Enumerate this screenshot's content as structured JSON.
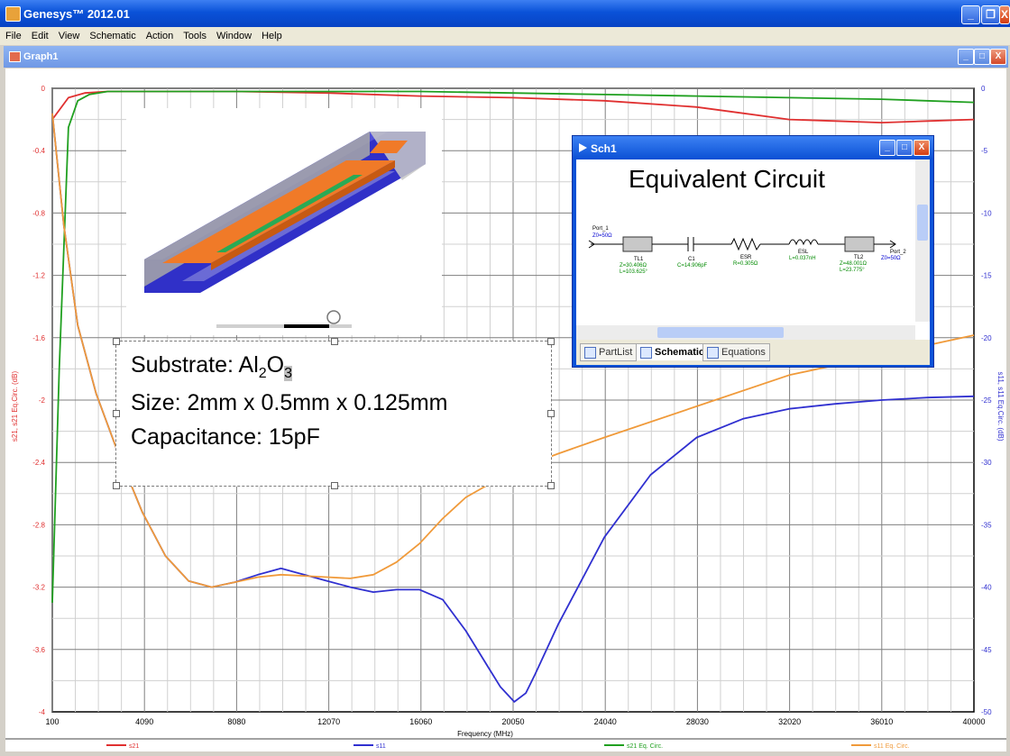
{
  "window": {
    "title": "Genesys™ 2012.01",
    "minimize_glyph": "_",
    "maximize_glyph": "❐",
    "close_glyph": "X"
  },
  "menu": [
    "File",
    "Edit",
    "View",
    "Schematic",
    "Action",
    "Tools",
    "Window",
    "Help"
  ],
  "graph_window": {
    "title": "Graph1",
    "minimize_glyph": "_",
    "maximize_glyph": "□",
    "close_glyph": "X"
  },
  "info_box": {
    "substrate_prefix": "Substrate: Al",
    "substrate_sub1": "2",
    "substrate_mid": "O",
    "substrate_sub2": "3",
    "size": "Size: 2mm x 0.5mm x 0.125mm",
    "capacitance": "Capacitance: 15pF"
  },
  "sch_window": {
    "title": "Sch1",
    "heading": "Equivalent Circuit",
    "tabs": [
      "PartList",
      "Schematic",
      "Equations"
    ],
    "active_tab": "Schematic",
    "minimize_glyph": "_",
    "maximize_glyph": "□",
    "close_glyph": "X",
    "components": {
      "port1": {
        "name": "Port_1",
        "param": "Z0=50Ω"
      },
      "tl1": {
        "name": "TL1",
        "p1": "Z=30.406Ω",
        "p2": "L=103.625°"
      },
      "c1": {
        "name": "C1",
        "p1": "C=14.906pF"
      },
      "esr": {
        "name": "ESR",
        "p1": "R=0.305Ω"
      },
      "esl": {
        "name": "ESL",
        "p1": "L=0.037nH"
      },
      "tl2": {
        "name": "TL2",
        "p1": "Z=48.001Ω",
        "p2": "L=23.775°"
      },
      "port2": {
        "name": "Port_2",
        "param": "Z0=50Ω"
      }
    }
  },
  "colors": {
    "s21": "#e03030",
    "s11": "#3030d0",
    "s21_eq": "#20a020",
    "s11_eq": "#f09a3a"
  },
  "chart_data": {
    "type": "line",
    "xlabel": "Frequency (MHz)",
    "ylabel": "s21, s21 Eq.Circ. (dB)",
    "y2label": "s11, s11 Eq.Circ. (dB)",
    "x_ticks": [
      "100",
      "4090",
      "8080",
      "12070",
      "16060",
      "20050",
      "24040",
      "28030",
      "32020",
      "36010",
      "40000"
    ],
    "y_ticks": [
      "0",
      "-0.4",
      "-0.8",
      "-1.2",
      "-1.6",
      "-2",
      "-2.4",
      "-2.8",
      "-3.2",
      "-3.6",
      "-4"
    ],
    "y2_ticks": [
      "0",
      "-5",
      "-10",
      "-15",
      "-20",
      "-25",
      "-30",
      "-35",
      "-40",
      "-45",
      "-50"
    ],
    "xlim": [
      100,
      40000
    ],
    "ylim": [
      -4,
      0
    ],
    "y2lim": [
      -50,
      0
    ],
    "grid": true,
    "legend_position": "bottom",
    "series": [
      {
        "name": "s21",
        "axis": "left",
        "x": [
          100,
          800,
          1500,
          2500,
          4000,
          8000,
          12000,
          16000,
          20000,
          24000,
          28000,
          30000,
          32000,
          34000,
          36000,
          38000,
          40000
        ],
        "y": [
          -0.2,
          -0.06,
          -0.03,
          -0.02,
          -0.02,
          -0.02,
          -0.03,
          -0.05,
          -0.06,
          -0.08,
          -0.12,
          -0.16,
          -0.2,
          -0.21,
          -0.22,
          -0.21,
          -0.2
        ]
      },
      {
        "name": "s11",
        "axis": "right",
        "x": [
          100,
          600,
          1200,
          2000,
          3000,
          4000,
          5000,
          6000,
          7000,
          8000,
          9000,
          10000,
          11000,
          12000,
          13000,
          14000,
          15000,
          16000,
          17000,
          18000,
          19000,
          19500,
          20100,
          20600,
          21000,
          22000,
          24000,
          26000,
          28000,
          30000,
          32000,
          34000,
          36000,
          38000,
          40000
        ],
        "y": [
          -2,
          -11,
          -19,
          -24.5,
          -29.5,
          -34,
          -37.5,
          -39.5,
          -40,
          -39.6,
          -39,
          -38.5,
          -39,
          -39.5,
          -40,
          -40.4,
          -40.2,
          -40.2,
          -41,
          -43.5,
          -46.5,
          -48,
          -49.2,
          -48.5,
          -47,
          -43,
          -36,
          -31,
          -28,
          -26.5,
          -25.7,
          -25.3,
          -25,
          -24.8,
          -24.7
        ]
      },
      {
        "name": "s21 Eq. Circ.",
        "axis": "left",
        "x": [
          100,
          400,
          800,
          1200,
          1700,
          2500,
          4000,
          8000,
          12000,
          16000,
          20000,
          24000,
          28000,
          32000,
          36000,
          40000
        ],
        "y": [
          -3.3,
          -1.8,
          -0.25,
          -0.08,
          -0.04,
          -0.02,
          -0.02,
          -0.02,
          -0.02,
          -0.02,
          -0.03,
          -0.04,
          -0.05,
          -0.06,
          -0.07,
          -0.09
        ]
      },
      {
        "name": "s11 Eq. Circ.",
        "axis": "right",
        "x": [
          100,
          600,
          1200,
          2000,
          3000,
          4000,
          5000,
          6000,
          7000,
          8000,
          9000,
          10000,
          11000,
          12000,
          13000,
          14000,
          15000,
          16000,
          17000,
          18000,
          20000,
          22000,
          24000,
          28000,
          32000,
          36000,
          40000
        ],
        "y": [
          -2,
          -11,
          -19,
          -24.5,
          -29.5,
          -34,
          -37.5,
          -39.5,
          -40,
          -39.6,
          -39.2,
          -39,
          -39.1,
          -39.2,
          -39.3,
          -39,
          -38,
          -36.5,
          -34.5,
          -32.8,
          -30.7,
          -29.3,
          -28,
          -25.5,
          -23,
          -21.4,
          -19.8
        ]
      }
    ]
  }
}
